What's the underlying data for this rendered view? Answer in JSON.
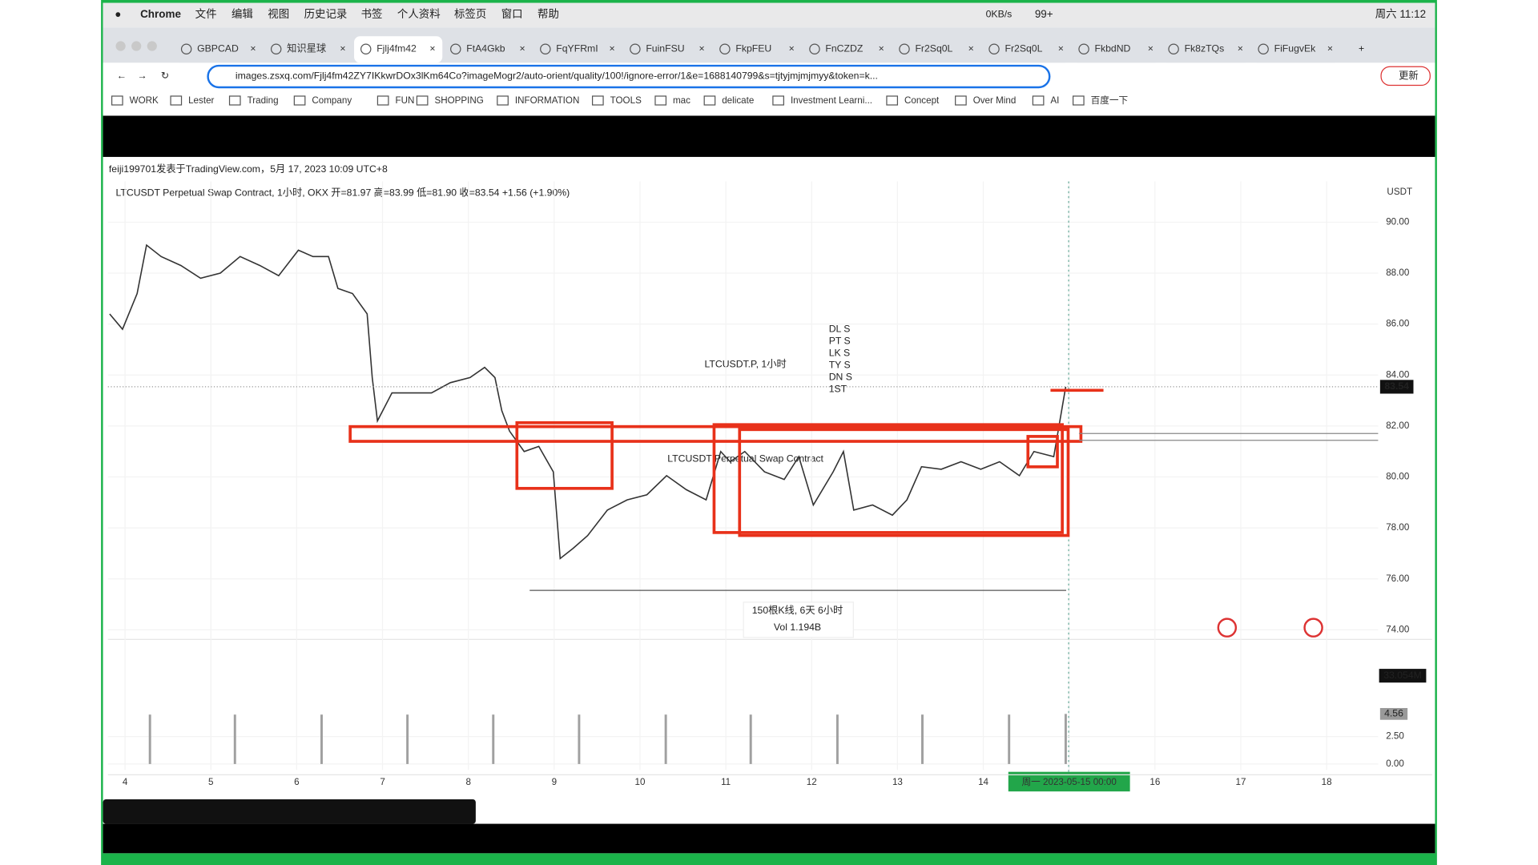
{
  "menubar": {
    "app": "Chrome",
    "menus": [
      "文件",
      "编辑",
      "视图",
      "历史记录",
      "书签",
      "个人资料",
      "标签页",
      "窗口",
      "帮助"
    ],
    "net": "0KB/s",
    "badge": "99+",
    "clock": "周六 11:12"
  },
  "tabs": [
    "GBPCAD",
    "知识星球",
    "Fjlj4fm42",
    "FtA4Gkb",
    "FqYFRmI",
    "FuinFSU",
    "FkpFEU",
    "FnCZDZ",
    "Fr2Sq0L",
    "Fr2Sq0L",
    "FkbdND",
    "Fk8zTQs",
    "FiFugvEk"
  ],
  "url": "images.zsxq.com/Fjlj4fm42ZY7IKkwrDOx3lKm64Co?imageMogr2/auto-orient/quality/100!/ignore-error/1&e=1688140799&s=tjtyjmjmjmyy&token=k...",
  "update_button": "更新",
  "bookmarks": [
    "WORK",
    "Lester",
    "Trading",
    "Company",
    "FUN",
    "SHOPPING",
    "INFORMATION",
    "TOOLS",
    "mac",
    "delicate",
    "Investment Learni...",
    "Concept",
    "Over Mind",
    "AI",
    "百度一下"
  ],
  "chart_data": [
    {
      "type": "line",
      "header": "feiji199701发表于TradingView.com，5月 17, 2023 10:09 UTC+8",
      "title": "LTCUSDT Perpetual Swap Contract, 1小时, OKX  开=81.97 高=83.99 低=81.90 收=83.54 +1.56 (+1.90%)",
      "watermark": "LTCUSDT.P, 1小时",
      "watermark_sub": "LTCUSDT Perpetual Swap Contract",
      "y_unit": "USDT",
      "color": "#333333",
      "x": [
        3.82,
        3.97,
        4.14,
        4.25,
        4.42,
        4.65,
        4.88,
        5.11,
        5.34,
        5.57,
        5.79,
        6.02,
        6.19,
        6.37,
        6.48,
        6.65,
        6.82,
        6.88,
        6.94,
        7.11,
        7.34,
        7.57,
        7.79,
        8.02,
        8.19,
        8.31,
        8.39,
        8.48,
        8.65,
        8.82,
        8.99,
        9.07,
        9.22,
        9.39,
        9.62,
        9.85,
        10.08,
        10.31,
        10.54,
        10.77,
        10.94,
        11.05,
        11.22,
        11.45,
        11.68,
        11.85,
        12.02,
        12.25,
        12.37,
        12.49,
        12.71,
        12.94,
        13.11,
        13.28,
        13.51,
        13.74,
        13.97,
        14.19,
        14.42,
        14.59,
        14.82,
        14.96
      ],
      "values": [
        86.4,
        85.8,
        87.2,
        89.1,
        88.65,
        88.3,
        87.8,
        88.0,
        88.65,
        88.3,
        87.9,
        88.9,
        88.65,
        88.65,
        87.4,
        87.2,
        86.4,
        83.9,
        82.2,
        83.3,
        83.3,
        83.3,
        83.7,
        83.9,
        84.3,
        83.9,
        82.6,
        81.8,
        81.0,
        81.2,
        80.2,
        76.8,
        77.2,
        77.7,
        78.7,
        79.1,
        79.3,
        80.05,
        79.5,
        79.1,
        81.0,
        80.6,
        81.0,
        80.2,
        79.9,
        80.8,
        78.9,
        80.2,
        81.0,
        78.7,
        78.9,
        78.5,
        79.1,
        80.4,
        80.3,
        80.6,
        80.3,
        80.6,
        80.05,
        81.0,
        80.8,
        83.54
      ],
      "last_price": 83.54,
      "xlim": [
        3.8,
        18.6
      ],
      "ylim": [
        73.7,
        91.6
      ],
      "xticks": [
        4,
        5,
        6,
        7,
        8,
        9,
        10,
        11,
        12,
        13,
        14,
        {
          "value": 15,
          "label": "周一  2023-05-15  00:00"
        },
        16,
        17,
        18
      ],
      "yticks": [
        {
          "value": 74,
          "label": "74.00"
        },
        {
          "value": 76,
          "label": "76.00"
        },
        {
          "value": 78,
          "label": "78.00"
        },
        {
          "value": 80,
          "label": "80.00"
        },
        {
          "value": 82,
          "label": "82.00"
        },
        {
          "value": 84,
          "label": "84.00"
        },
        {
          "value": 86,
          "label": "86.00"
        },
        {
          "value": 88,
          "label": "88.00"
        },
        {
          "value": 90,
          "label": "90.00"
        }
      ],
      "annotations": [
        "DL S",
        "PT S",
        "LK S",
        "TY S",
        "DN S",
        "1ST"
      ],
      "measure": [
        "150根K线, 6天 6小时",
        "Vol 1.194B"
      ],
      "volume_label": "33.054M"
    },
    {
      "type": "bar",
      "color": "#a0a0a0",
      "x": [
        4.29,
        5.28,
        6.29,
        7.29,
        8.29,
        9.29,
        10.3,
        11.29,
        12.3,
        13.29,
        14.3,
        14.96
      ],
      "values": [
        4.5,
        4.5,
        4.5,
        4.5,
        4.5,
        4.5,
        4.5,
        4.5,
        4.5,
        4.5,
        4.5,
        4.56
      ],
      "last_value": 4.56,
      "xlim": [
        3.8,
        18.6
      ],
      "ylim": [
        -0.98,
        5.27
      ],
      "yticks": [
        {
          "value": 0,
          "label": "0.00"
        },
        {
          "value": 2.5,
          "label": "2.50"
        }
      ]
    }
  ]
}
